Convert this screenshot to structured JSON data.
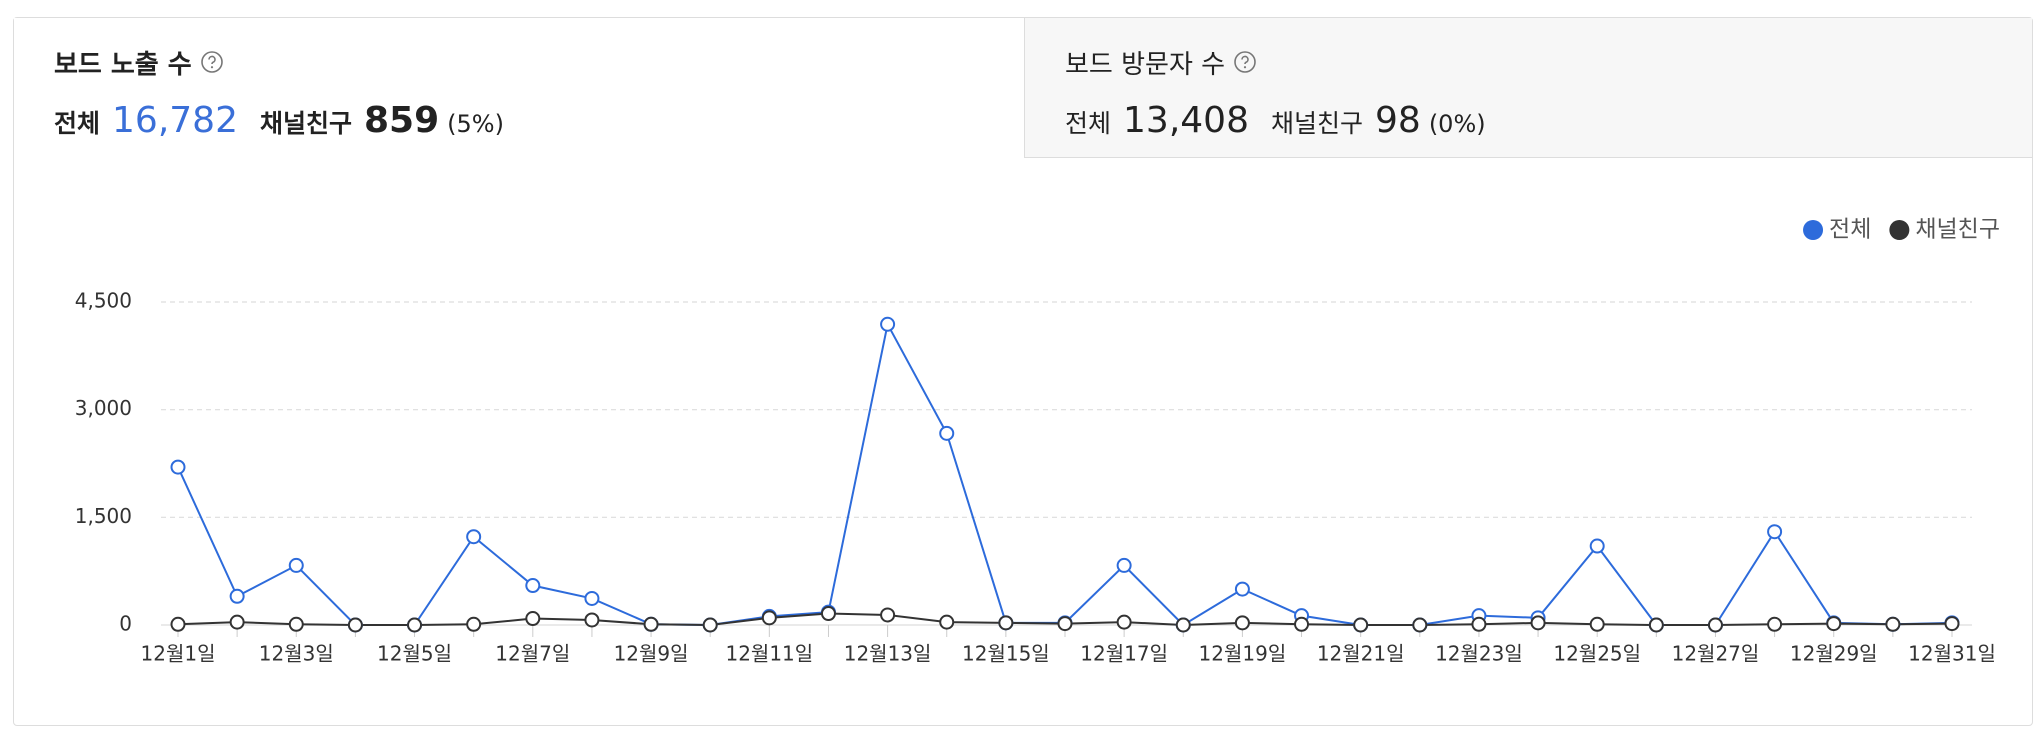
{
  "tabs": [
    {
      "title": "보드 노출 수",
      "total_label": "전체",
      "total": "16,782",
      "friend_label": "채널친구",
      "friend": "859",
      "share": "(5%)"
    },
    {
      "title": "보드 방문자 수",
      "total_label": "전체",
      "total": "13,408",
      "friend_label": "채널친구",
      "friend": "98",
      "share": "(0%)"
    }
  ],
  "chart_data": {
    "type": "line",
    "categories": [
      "12월1일",
      null,
      "12월3일",
      null,
      "12월5일",
      null,
      "12월7일",
      null,
      "12월9일",
      null,
      "12월11일",
      null,
      "12월13일",
      null,
      "12월15일",
      null,
      "12월17일",
      null,
      "12월19일",
      null,
      "12월21일",
      null,
      "12월23일",
      null,
      "12월25일",
      null,
      "12월27일",
      null,
      "12월29일",
      null,
      "12월31일"
    ],
    "series": [
      {
        "name": "전체",
        "color": "#2d6bdb",
        "values": [
          2200,
          400,
          830,
          0,
          0,
          1230,
          550,
          370,
          10,
          0,
          120,
          180,
          4190,
          2670,
          30,
          30,
          830,
          0,
          500,
          130,
          0,
          0,
          130,
          100,
          1100,
          0,
          0,
          1300,
          30,
          10,
          30
        ]
      },
      {
        "name": "채널친구",
        "color": "#333333",
        "values": [
          10,
          40,
          10,
          0,
          0,
          10,
          90,
          70,
          10,
          0,
          100,
          160,
          140,
          40,
          30,
          20,
          40,
          0,
          30,
          10,
          0,
          0,
          10,
          30,
          10,
          0,
          0,
          10,
          20,
          10,
          20
        ]
      }
    ],
    "ylim": [
      0,
      4500
    ],
    "yticks": [
      0,
      {
        "value": 1500,
        "label": "1,500"
      },
      {
        "value": 3000,
        "label": "3,000"
      },
      {
        "value": 4500,
        "label": "4,500"
      }
    ],
    "grid": true,
    "legend": "top-right"
  }
}
